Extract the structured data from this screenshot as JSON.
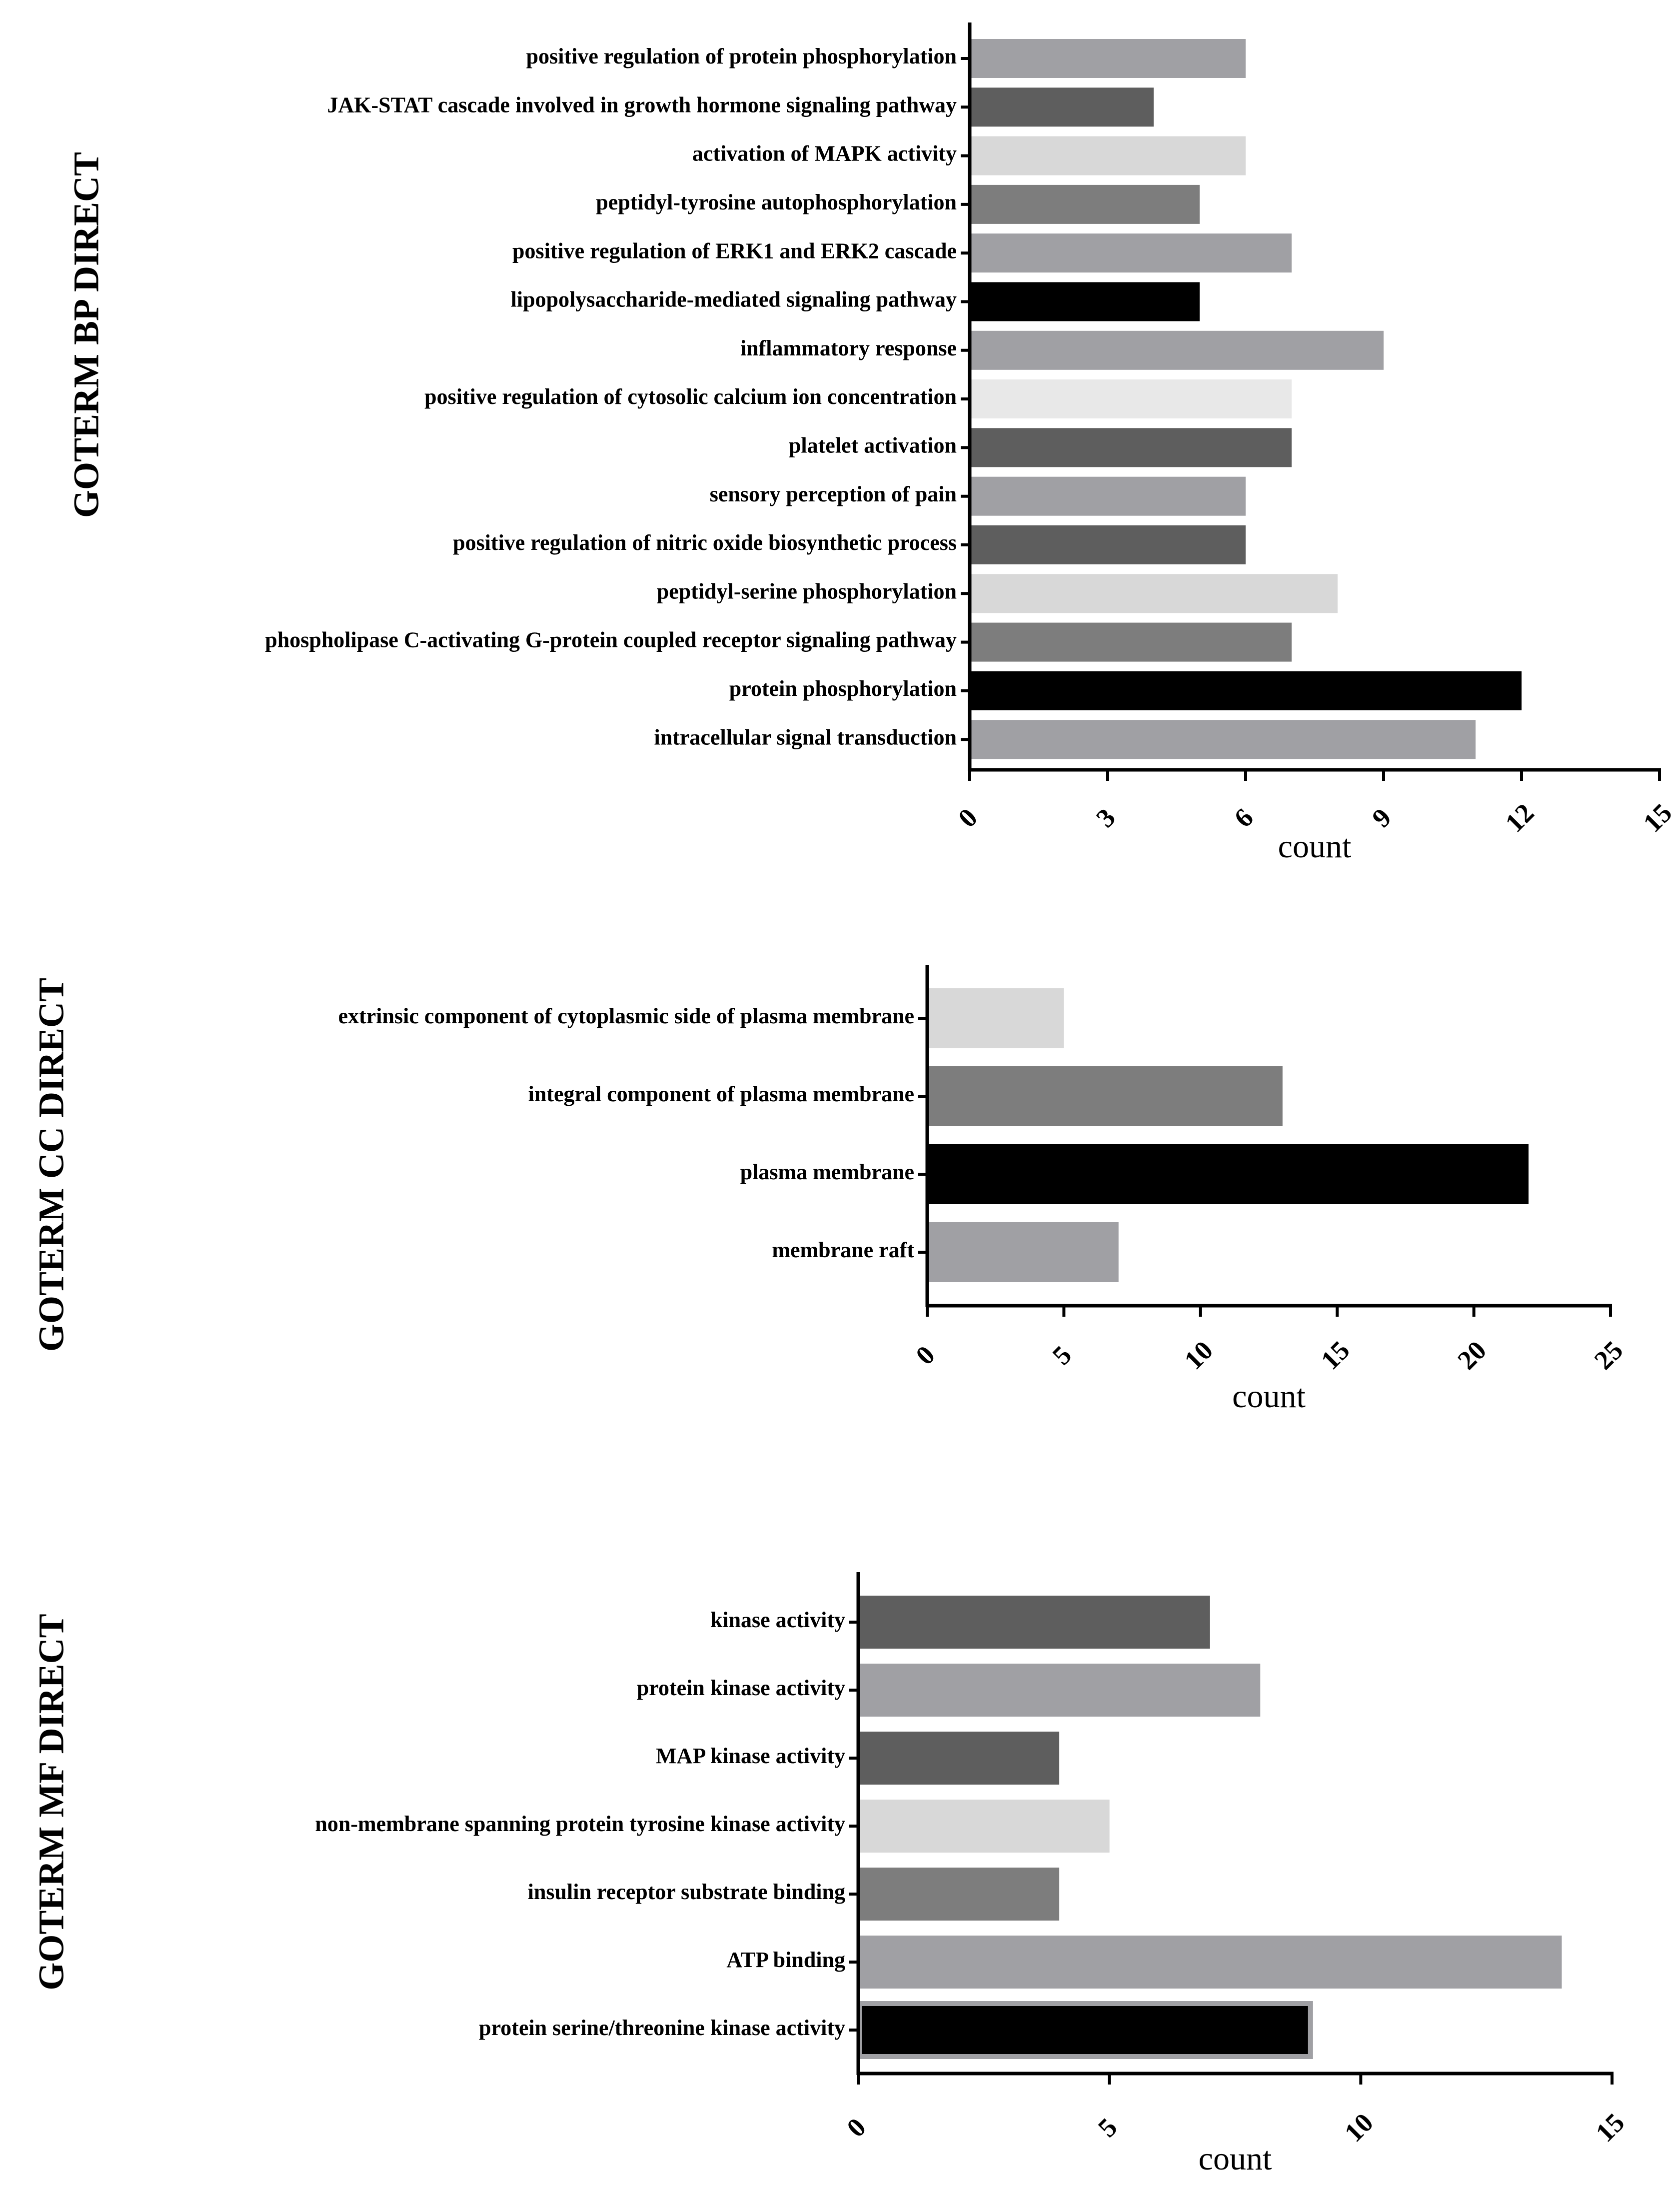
{
  "chart_data": [
    {
      "type": "bar",
      "orientation": "horizontal",
      "title": "GOTERM BP DIRECT",
      "xlabel": "count",
      "ylabel": "",
      "xlim": [
        0,
        15
      ],
      "ticks": [
        0,
        3,
        6,
        9,
        12,
        15
      ],
      "tick_labels": [
        "0",
        "3",
        "6",
        "9",
        "12",
        "15"
      ],
      "categories": [
        "positive regulation of protein phosphorylation",
        "JAK-STAT cascade involved in growth hormone signaling pathway",
        "activation of MAPK activity",
        "peptidyl-tyrosine autophosphorylation",
        "positive regulation of ERK1 and ERK2 cascade",
        "lipopolysaccharide-mediated signaling pathway",
        "inflammatory response",
        "positive regulation of cytosolic calcium ion concentration",
        "platelet activation",
        "sensory perception of pain",
        "positive regulation of nitric oxide biosynthetic process",
        "peptidyl-serine phosphorylation",
        "phospholipase C-activating G-protein coupled receptor signaling pathway",
        "protein phosphorylation",
        "intracellular signal transduction"
      ],
      "values": [
        6,
        4,
        6,
        5,
        7,
        5,
        9,
        7,
        7,
        6,
        6,
        8,
        7,
        12,
        11
      ],
      "colors": [
        "#a0a0a4",
        "#5e5e5e",
        "#d8d8d8",
        "#7d7d7d",
        "#a0a0a4",
        "#000000",
        "#a0a0a4",
        "#e8e8e8",
        "#5e5e5e",
        "#a0a0a4",
        "#5e5e5e",
        "#d8d8d8",
        "#7d7d7d",
        "#000000",
        "#a0a0a4"
      ]
    },
    {
      "type": "bar",
      "orientation": "horizontal",
      "title": "GOTERM CC DIRECT",
      "xlabel": "count",
      "ylabel": "",
      "xlim": [
        0,
        25
      ],
      "ticks": [
        0,
        5,
        10,
        15,
        20,
        25
      ],
      "tick_labels": [
        "0",
        "5",
        "10",
        "15",
        "20",
        "25"
      ],
      "categories": [
        "extrinsic component of cytoplasmic side of plasma membrane",
        "integral component of plasma membrane",
        "plasma membrane",
        "membrane raft"
      ],
      "values": [
        5,
        13,
        22,
        7
      ],
      "colors": [
        "#d8d8d8",
        "#7d7d7d",
        "#000000",
        "#a0a0a4"
      ]
    },
    {
      "type": "bar",
      "orientation": "horizontal",
      "title": "GOTERM MF DIRECT",
      "xlabel": "count",
      "ylabel": "",
      "xlim": [
        0,
        15
      ],
      "ticks": [
        0,
        5,
        10,
        15
      ],
      "tick_labels": [
        "0",
        "5",
        "10",
        "15"
      ],
      "categories": [
        "kinase activity",
        "protein kinase activity",
        "MAP kinase activity",
        "non-membrane spanning protein tyrosine kinase activity",
        "insulin receptor substrate binding",
        "ATP binding",
        "protein serine/threonine kinase activity"
      ],
      "values": [
        7,
        8,
        4,
        5,
        4,
        14,
        9
      ],
      "colors": [
        "#5e5e5e",
        "#a0a0a4",
        "#5e5e5e",
        "#d8d8d8",
        "#7d7d7d",
        "#a0a0a4",
        "#000000"
      ]
    }
  ]
}
